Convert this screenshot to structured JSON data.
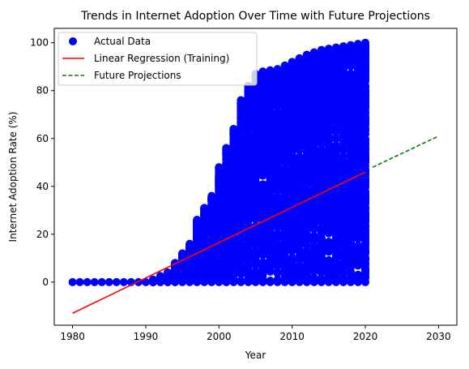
{
  "chart_data": {
    "type": "scatter",
    "title": "Trends in Internet Adoption Over Time with Future Projections",
    "xlabel": "Year",
    "ylabel": "Internet Adoption Rate (%)",
    "xlim": [
      1977.5,
      2032.5
    ],
    "ylim": [
      -18,
      106
    ],
    "x_ticks": [
      1980,
      1990,
      2000,
      2010,
      2020,
      2030
    ],
    "y_ticks": [
      0,
      20,
      40,
      60,
      80,
      100
    ],
    "grid": false,
    "legend_position": "upper-left",
    "legend": [
      {
        "label": "Actual Data",
        "marker": "circle",
        "color": "#0000ff"
      },
      {
        "label": "Linear Regression (Training)",
        "marker": "solid-line",
        "color": "#ff0000"
      },
      {
        "label": "Future Projections",
        "marker": "dashed-line",
        "color": "#008000"
      }
    ],
    "series": [
      {
        "name": "Actual Data",
        "type": "scatter",
        "color": "#0000ff",
        "points_per_year": 200,
        "x_range": [
          1980,
          2020
        ],
        "baseline_value": 0,
        "upper_envelope": [
          [
            1980,
            0
          ],
          [
            1989,
            0
          ],
          [
            1991,
            1
          ],
          [
            1993,
            4
          ],
          [
            1995,
            12
          ],
          [
            1996,
            16
          ],
          [
            1997,
            26
          ],
          [
            1998,
            31
          ],
          [
            1999,
            36
          ],
          [
            2000,
            48
          ],
          [
            2001,
            56
          ],
          [
            2002,
            64
          ],
          [
            2003,
            76
          ],
          [
            2004,
            82
          ],
          [
            2005,
            87
          ],
          [
            2006,
            88
          ],
          [
            2008,
            89
          ],
          [
            2010,
            92
          ],
          [
            2012,
            95
          ],
          [
            2014,
            97
          ],
          [
            2016,
            98
          ],
          [
            2018,
            99
          ],
          [
            2020,
            100
          ]
        ]
      },
      {
        "name": "Linear Regression (Training)",
        "type": "line",
        "color": "#ff0000",
        "x": [
          1980,
          2020
        ],
        "y": [
          -13,
          46
        ]
      },
      {
        "name": "Future Projections",
        "type": "line",
        "color": "#008000",
        "dashed": true,
        "x": [
          2021,
          2030
        ],
        "y": [
          48,
          61
        ]
      }
    ]
  }
}
